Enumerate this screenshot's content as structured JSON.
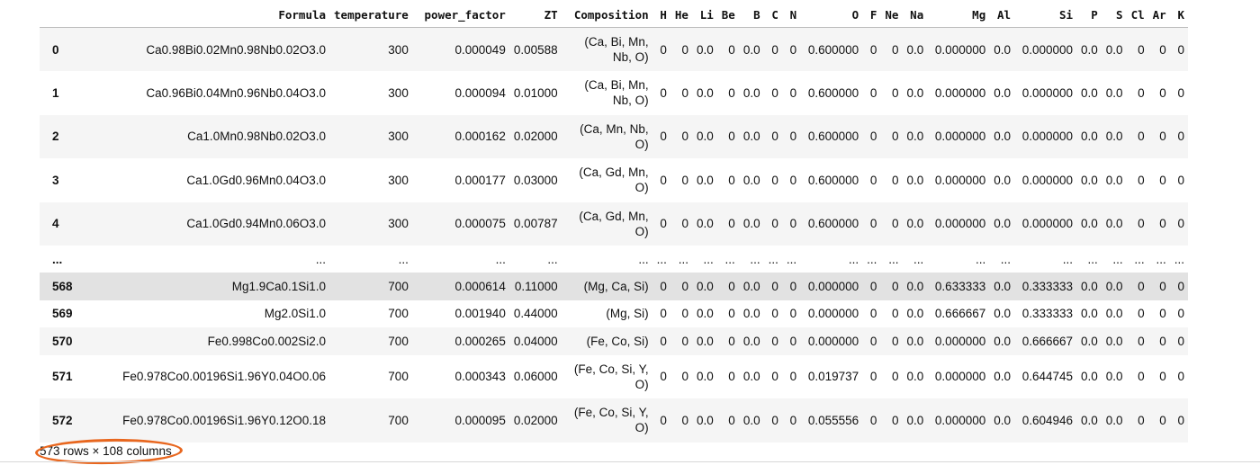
{
  "columns": [
    "Formula",
    "temperature",
    "power_factor",
    "ZT",
    "Composition",
    "H",
    "He",
    "Li",
    "Be",
    "B",
    "C",
    "N",
    "O",
    "F",
    "Ne",
    "Na",
    "Mg",
    "Al",
    "Si",
    "P",
    "S",
    "Cl",
    "Ar",
    "K"
  ],
  "rows": [
    {
      "index": "0",
      "cells": [
        "Ca0.98Bi0.02Mn0.98Nb0.02O3.0",
        "300",
        "0.000049",
        "0.00588",
        "(Ca, Bi, Mn, Nb, O)",
        "0",
        "0",
        "0.0",
        "0",
        "0.0",
        "0",
        "0",
        "0.600000",
        "0",
        "0",
        "0.0",
        "0.000000",
        "0.0",
        "0.000000",
        "0.0",
        "0.0",
        "0",
        "0",
        "0"
      ]
    },
    {
      "index": "1",
      "cells": [
        "Ca0.96Bi0.04Mn0.96Nb0.04O3.0",
        "300",
        "0.000094",
        "0.01000",
        "(Ca, Bi, Mn, Nb, O)",
        "0",
        "0",
        "0.0",
        "0",
        "0.0",
        "0",
        "0",
        "0.600000",
        "0",
        "0",
        "0.0",
        "0.000000",
        "0.0",
        "0.000000",
        "0.0",
        "0.0",
        "0",
        "0",
        "0"
      ]
    },
    {
      "index": "2",
      "cells": [
        "Ca1.0Mn0.98Nb0.02O3.0",
        "300",
        "0.000162",
        "0.02000",
        "(Ca, Mn, Nb, O)",
        "0",
        "0",
        "0.0",
        "0",
        "0.0",
        "0",
        "0",
        "0.600000",
        "0",
        "0",
        "0.0",
        "0.000000",
        "0.0",
        "0.000000",
        "0.0",
        "0.0",
        "0",
        "0",
        "0"
      ]
    },
    {
      "index": "3",
      "cells": [
        "Ca1.0Gd0.96Mn0.04O3.0",
        "300",
        "0.000177",
        "0.03000",
        "(Ca, Gd, Mn, O)",
        "0",
        "0",
        "0.0",
        "0",
        "0.0",
        "0",
        "0",
        "0.600000",
        "0",
        "0",
        "0.0",
        "0.000000",
        "0.0",
        "0.000000",
        "0.0",
        "0.0",
        "0",
        "0",
        "0"
      ]
    },
    {
      "index": "4",
      "cells": [
        "Ca1.0Gd0.94Mn0.06O3.0",
        "300",
        "0.000075",
        "0.00787",
        "(Ca, Gd, Mn, O)",
        "0",
        "0",
        "0.0",
        "0",
        "0.0",
        "0",
        "0",
        "0.600000",
        "0",
        "0",
        "0.0",
        "0.000000",
        "0.0",
        "0.000000",
        "0.0",
        "0.0",
        "0",
        "0",
        "0"
      ]
    },
    {
      "index": "...",
      "cells": [
        "...",
        "...",
        "...",
        "...",
        "...",
        "...",
        "...",
        "...",
        "...",
        "...",
        "...",
        "...",
        "...",
        "...",
        "...",
        "...",
        "...",
        "...",
        "...",
        "...",
        "...",
        "...",
        "...",
        "..."
      ]
    },
    {
      "index": "568",
      "cells": [
        "Mg1.9Ca0.1Si1.0",
        "700",
        "0.000614",
        "0.11000",
        "(Mg, Ca, Si)",
        "0",
        "0",
        "0.0",
        "0",
        "0.0",
        "0",
        "0",
        "0.000000",
        "0",
        "0",
        "0.0",
        "0.633333",
        "0.0",
        "0.333333",
        "0.0",
        "0.0",
        "0",
        "0",
        "0"
      ]
    },
    {
      "index": "569",
      "cells": [
        "Mg2.0Si1.0",
        "700",
        "0.001940",
        "0.44000",
        "(Mg, Si)",
        "0",
        "0",
        "0.0",
        "0",
        "0.0",
        "0",
        "0",
        "0.000000",
        "0",
        "0",
        "0.0",
        "0.666667",
        "0.0",
        "0.333333",
        "0.0",
        "0.0",
        "0",
        "0",
        "0"
      ]
    },
    {
      "index": "570",
      "cells": [
        "Fe0.998Co0.002Si2.0",
        "700",
        "0.000265",
        "0.04000",
        "(Fe, Co, Si)",
        "0",
        "0",
        "0.0",
        "0",
        "0.0",
        "0",
        "0",
        "0.000000",
        "0",
        "0",
        "0.0",
        "0.000000",
        "0.0",
        "0.666667",
        "0.0",
        "0.0",
        "0",
        "0",
        "0"
      ]
    },
    {
      "index": "571",
      "cells": [
        "Fe0.978Co0.00196Si1.96Y0.04O0.06",
        "700",
        "0.000343",
        "0.06000",
        "(Fe, Co, Si, Y, O)",
        "0",
        "0",
        "0.0",
        "0",
        "0.0",
        "0",
        "0",
        "0.019737",
        "0",
        "0",
        "0.0",
        "0.000000",
        "0.0",
        "0.644745",
        "0.0",
        "0.0",
        "0",
        "0",
        "0"
      ]
    },
    {
      "index": "572",
      "cells": [
        "Fe0.978Co0.00196Si1.96Y0.12O0.18",
        "700",
        "0.000095",
        "0.02000",
        "(Fe, Co, Si, Y, O)",
        "0",
        "0",
        "0.0",
        "0",
        "0.0",
        "0",
        "0",
        "0.055556",
        "0",
        "0",
        "0.0",
        "0.000000",
        "0.0",
        "0.604946",
        "0.0",
        "0.0",
        "0",
        "0",
        "0"
      ]
    }
  ],
  "footer": "573 rows × 108 columns",
  "colors": {
    "annotation": "#e8671f",
    "row_stripe": "#f5f5f5",
    "row_hover": "#e2e2e2"
  }
}
